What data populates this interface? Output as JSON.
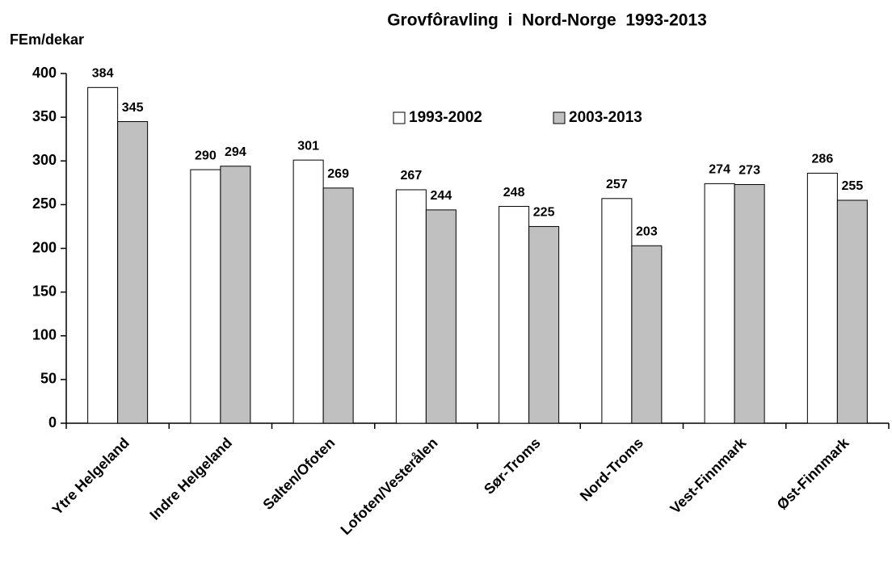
{
  "chart_data": {
    "type": "bar",
    "title": "Grovfôravling  i  Nord-Norge  1993-2013",
    "y_label": "FEm/dekar",
    "categories": [
      "Ytre Helgeland",
      "Indre Helgeland",
      "Salten/Ofoten",
      "Lofoten/Vesterålen",
      "Sør-Troms",
      "Nord-Troms",
      "Vest-Finnmark",
      "Øst-Finnmark"
    ],
    "series": [
      {
        "name": "1993-2002",
        "color": "#ffffff",
        "values": [
          384,
          290,
          301,
          267,
          248,
          257,
          274,
          286
        ]
      },
      {
        "name": "2003-2013",
        "color": "#c0c0c0",
        "values": [
          345,
          294,
          269,
          244,
          225,
          203,
          273,
          255
        ]
      }
    ],
    "ylim": [
      0,
      400
    ],
    "yticks": [
      0,
      50,
      100,
      150,
      200,
      250,
      300,
      350,
      400
    ],
    "grid": false,
    "legend": "top"
  }
}
